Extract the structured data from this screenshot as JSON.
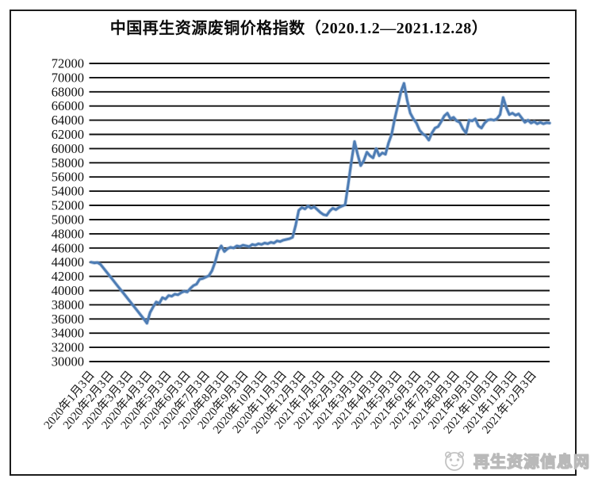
{
  "title": "中国再生资源废铜价格指数（2020.1.2—2021.12.28）",
  "watermark": {
    "text": "再生资源信息网",
    "logo": "panda-logo"
  },
  "colors": {
    "line": "#4d7cb4",
    "line_halo": "#8aa9cf",
    "grid": "#0f0f0f",
    "text": "#111111",
    "frame": "#1c1c1c",
    "watermark": "#b9b9b9"
  },
  "chart_data": {
    "type": "line",
    "title": "中国再生资源废铜价格指数（2020.1.2—2021.12.28）",
    "x_start": "2020-01-02",
    "x_end": "2021-12-28",
    "grid": "horizontal",
    "legend": "none",
    "y_axis": {
      "min": 30000,
      "max": 72000,
      "step": 2000
    },
    "x_tick_labels": [
      "2020年1月3日",
      "2020年2月3日",
      "2020年3月3日",
      "2020年4月3日",
      "2020年5月3日",
      "2020年6月3日",
      "2020年7月3日",
      "2020年8月3日",
      "2020年9月3日",
      "2020年10月3日",
      "2020年11月3日",
      "2020年12月3日",
      "2021年1月3日",
      "2021年2月3日",
      "2021年3月3日",
      "2021年4月3日",
      "2021年5月3日",
      "2021年6月3日",
      "2021年7月3日",
      "2021年8月3日",
      "2021年9月3日",
      "2021年10月3日",
      "2021年11月3日",
      "2021年12月3日"
    ],
    "values": [
      44000,
      43900,
      43950,
      43700,
      43150,
      42600,
      42050,
      41500,
      40950,
      40400,
      39850,
      39300,
      38750,
      38200,
      37650,
      37100,
      36550,
      36000,
      35400,
      36900,
      37700,
      38400,
      38200,
      39000,
      38800,
      39300,
      39200,
      39500,
      39400,
      39700,
      39900,
      39800,
      40300,
      40700,
      40900,
      41600,
      41700,
      41900,
      42100,
      42800,
      44000,
      45600,
      46300,
      45500,
      45900,
      46100,
      46000,
      46300,
      46200,
      46400,
      46300,
      46200,
      46500,
      46400,
      46600,
      46500,
      46700,
      46600,
      46800,
      46700,
      47000,
      46900,
      47100,
      47200,
      47300,
      47500,
      49200,
      51300,
      51700,
      51500,
      51900,
      51600,
      51800,
      51400,
      51000,
      50700,
      50600,
      51200,
      51600,
      51400,
      51700,
      51900,
      52100,
      55000,
      58200,
      61000,
      59200,
      57600,
      58300,
      59500,
      59000,
      58700,
      60000,
      59000,
      59400,
      59200,
      60800,
      62000,
      64200,
      66100,
      68000,
      69200,
      66800,
      65000,
      64200,
      63600,
      62600,
      62100,
      61800,
      61200,
      62200,
      62900,
      63100,
      63800,
      64600,
      65000,
      64200,
      64400,
      63900,
      63700,
      62800,
      62200,
      64000,
      63900,
      64200,
      63200,
      62900,
      63600,
      64000,
      64100,
      64000,
      64200,
      64800,
      67200,
      65800,
      64800,
      65000,
      64700,
      64900,
      64300,
      63700,
      64000,
      63600,
      63800,
      63500,
      63700,
      63500,
      63650,
      63600
    ]
  }
}
